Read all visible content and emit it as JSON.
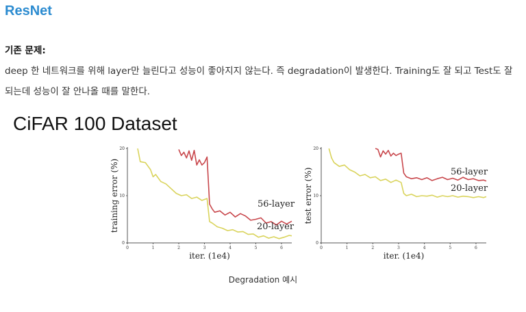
{
  "page": {
    "title": "ResNet",
    "subheading": "기존 문제:",
    "paragraph": "deep 한 네트워크를 위해 layer만 늘린다고 성능이 좋아지지 않는다. 즉 degradation이 발생한다. Training도 잘 되고 Test도 잘 되는데 성능이 잘 안나올 때를 말한다.",
    "caption": "Degradation 예시"
  },
  "figure_title": "CiFAR 100 Dataset",
  "colors": {
    "title": "#2b8bd0",
    "layer56": "#c8464b",
    "layer20": "#d9d35a"
  },
  "chart_data": [
    {
      "type": "line",
      "ylabel": "training error (%)",
      "xlabel": "iter. (1e4)",
      "xlim": [
        0,
        6.4
      ],
      "ylim": [
        0,
        20
      ],
      "xticks": [
        "0",
        "1",
        "2",
        "3",
        "4",
        "5",
        "6"
      ],
      "yticks": [
        "0",
        "10",
        "20"
      ],
      "series": [
        {
          "name": "56-layer",
          "x": [
            2.0,
            2.1,
            2.2,
            2.3,
            2.4,
            2.5,
            2.6,
            2.7,
            2.8,
            2.9,
            3.0,
            3.1,
            3.2,
            3.3,
            3.4,
            3.6,
            3.8,
            4.0,
            4.2,
            4.4,
            4.6,
            4.8,
            5.0,
            5.2,
            5.4,
            5.6,
            5.8,
            6.0,
            6.2,
            6.4
          ],
          "y": [
            19.8,
            18.5,
            19.2,
            18.0,
            19.5,
            17.5,
            19.6,
            16.5,
            17.6,
            16.5,
            17.0,
            18.2,
            8.2,
            7.2,
            6.5,
            6.8,
            5.9,
            6.5,
            5.5,
            6.2,
            5.7,
            4.8,
            5.0,
            5.3,
            4.2,
            4.5,
            3.8,
            4.6,
            4.0,
            4.6
          ]
        },
        {
          "name": "20-layer",
          "x": [
            0.4,
            0.5,
            0.7,
            0.9,
            1.0,
            1.1,
            1.3,
            1.5,
            1.7,
            1.9,
            2.1,
            2.3,
            2.5,
            2.7,
            2.9,
            3.1,
            3.2,
            3.3,
            3.5,
            3.7,
            3.9,
            4.1,
            4.3,
            4.5,
            4.7,
            4.9,
            5.1,
            5.3,
            5.5,
            5.7,
            5.9,
            6.1,
            6.3,
            6.4
          ],
          "y": [
            20.0,
            17.2,
            17.0,
            15.5,
            14.0,
            14.5,
            13.0,
            12.5,
            11.5,
            10.5,
            10.0,
            10.2,
            9.4,
            9.7,
            9.0,
            9.4,
            4.5,
            4.2,
            3.4,
            3.1,
            2.6,
            2.8,
            2.3,
            2.4,
            1.8,
            1.9,
            1.2,
            1.5,
            1.0,
            1.3,
            0.9,
            1.2,
            1.6,
            1.5
          ]
        }
      ]
    },
    {
      "type": "line",
      "ylabel": "test error (%)",
      "xlabel": "iter. (1e4)",
      "xlim": [
        0,
        6.4
      ],
      "ylim": [
        0,
        20
      ],
      "xticks": [
        "0",
        "1",
        "2",
        "3",
        "4",
        "5",
        "6"
      ],
      "yticks": [
        "0",
        "10",
        "20"
      ],
      "series": [
        {
          "name": "56-layer",
          "x": [
            2.1,
            2.2,
            2.3,
            2.4,
            2.5,
            2.6,
            2.7,
            2.8,
            2.9,
            3.0,
            3.1,
            3.2,
            3.3,
            3.5,
            3.7,
            3.9,
            4.1,
            4.3,
            4.5,
            4.7,
            4.9,
            5.1,
            5.3,
            5.5,
            5.7,
            5.9,
            6.1,
            6.3,
            6.4
          ],
          "y": [
            20.0,
            19.8,
            18.2,
            19.5,
            18.8,
            19.6,
            18.4,
            19.0,
            18.5,
            18.8,
            19.0,
            14.8,
            14.0,
            13.6,
            13.8,
            13.4,
            13.8,
            13.2,
            13.6,
            13.9,
            13.4,
            13.7,
            13.3,
            13.9,
            13.4,
            13.6,
            13.2,
            13.3,
            13.1
          ]
        },
        {
          "name": "20-layer",
          "x": [
            0.3,
            0.4,
            0.5,
            0.7,
            0.9,
            1.1,
            1.3,
            1.5,
            1.7,
            1.9,
            2.1,
            2.3,
            2.5,
            2.7,
            2.9,
            3.1,
            3.2,
            3.3,
            3.5,
            3.7,
            3.9,
            4.1,
            4.3,
            4.5,
            4.7,
            4.9,
            5.1,
            5.3,
            5.5,
            5.7,
            5.9,
            6.1,
            6.3,
            6.4
          ],
          "y": [
            20.0,
            18.0,
            17.0,
            16.2,
            16.5,
            15.5,
            15.0,
            14.2,
            14.5,
            13.8,
            14.0,
            13.2,
            13.5,
            12.8,
            13.3,
            12.8,
            10.5,
            10.0,
            10.3,
            9.8,
            10.0,
            9.9,
            10.1,
            9.7,
            10.0,
            9.8,
            10.0,
            9.7,
            9.9,
            9.8,
            9.6,
            9.8,
            9.6,
            9.8
          ]
        }
      ]
    }
  ]
}
